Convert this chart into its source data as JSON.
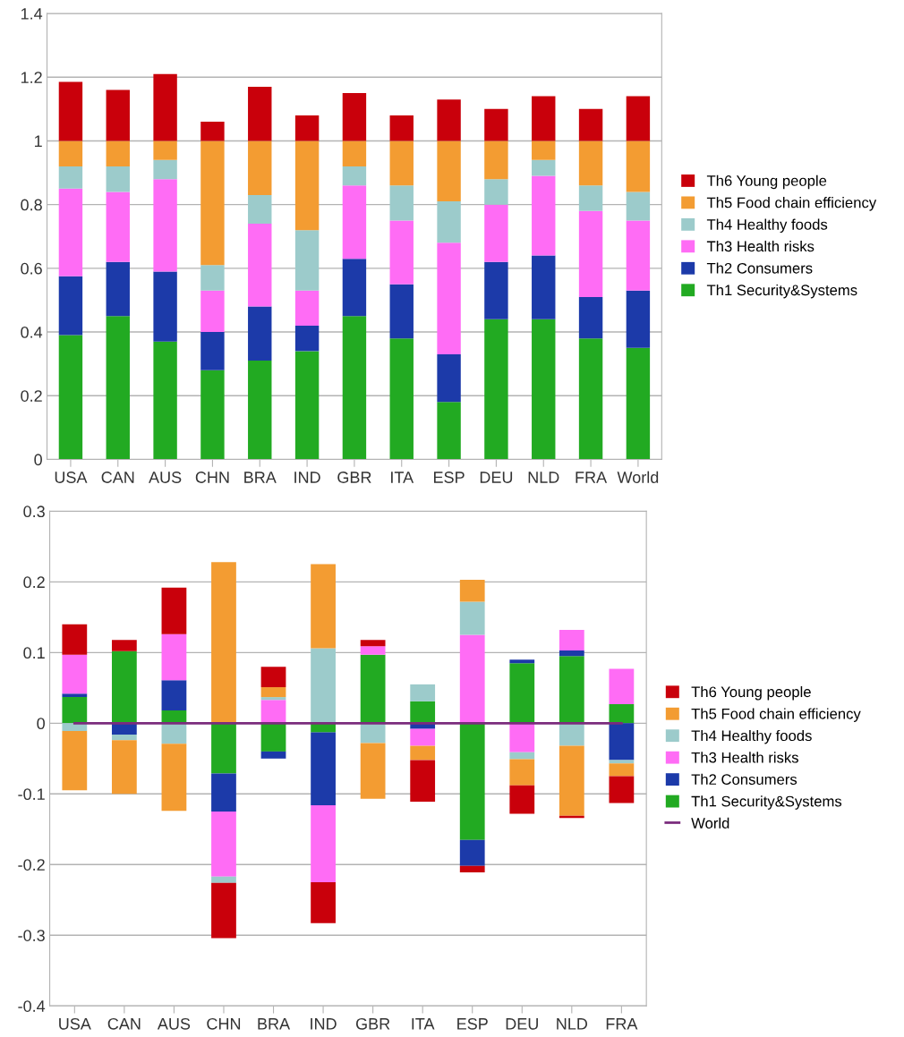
{
  "chart_data": [
    {
      "type": "bar",
      "stacked": true,
      "categories": [
        "USA",
        "CAN",
        "AUS",
        "CHN",
        "BRA",
        "IND",
        "GBR",
        "ITA",
        "ESP",
        "DEU",
        "NLD",
        "FRA",
        "World"
      ],
      "ylim": [
        0,
        1.4
      ],
      "yticks": [
        0,
        0.2,
        0.4,
        0.6,
        0.8,
        1,
        1.2,
        1.4
      ],
      "grid": "y",
      "legend": "right",
      "series": [
        {
          "name": "Th1 Security&Systems",
          "color": "#22aa22",
          "values": [
            0.39,
            0.45,
            0.37,
            0.28,
            0.31,
            0.34,
            0.45,
            0.38,
            0.18,
            0.44,
            0.44,
            0.38,
            0.35
          ]
        },
        {
          "name": "Th2 Consumers",
          "color": "#1c3aa9",
          "values": [
            0.185,
            0.17,
            0.22,
            0.12,
            0.17,
            0.08,
            0.18,
            0.17,
            0.15,
            0.18,
            0.2,
            0.13,
            0.18
          ]
        },
        {
          "name": "Th3 Health risks",
          "color": "#ff6cf5",
          "values": [
            0.275,
            0.22,
            0.29,
            0.13,
            0.26,
            0.11,
            0.23,
            0.2,
            0.35,
            0.18,
            0.25,
            0.27,
            0.22
          ]
        },
        {
          "name": "Th4 Healthy foods",
          "color": "#9ccbcb",
          "values": [
            0.07,
            0.08,
            0.06,
            0.08,
            0.09,
            0.19,
            0.06,
            0.11,
            0.13,
            0.08,
            0.05,
            0.08,
            0.09
          ]
        },
        {
          "name": "Th5 Food chain efficiency",
          "color": "#f39c32",
          "values": [
            0.08,
            0.08,
            0.06,
            0.39,
            0.17,
            0.28,
            0.08,
            0.14,
            0.19,
            0.12,
            0.06,
            0.14,
            0.16
          ]
        },
        {
          "name": "Th6 Young people",
          "color": "#c9000b",
          "values": [
            0.185,
            0.16,
            0.21,
            0.06,
            0.17,
            0.08,
            0.15,
            0.08,
            0.13,
            0.1,
            0.14,
            0.1,
            0.14
          ]
        }
      ]
    },
    {
      "type": "bar",
      "stacked": true,
      "categories": [
        "USA",
        "CAN",
        "AUS",
        "CHN",
        "BRA",
        "IND",
        "GBR",
        "ITA",
        "ESP",
        "DEU",
        "NLD",
        "FRA"
      ],
      "ylim": [
        -0.4,
        0.3
      ],
      "yticks": [
        -0.4,
        -0.3,
        -0.2,
        -0.1,
        0,
        0.1,
        0.2,
        0.3
      ],
      "grid": "y",
      "legend": "right",
      "series": [
        {
          "name": "Th1 Security&Systems",
          "color": "#22aa22",
          "values": [
            0.037,
            0.102,
            0.018,
            -0.071,
            -0.04,
            -0.013,
            0.097,
            0.031,
            -0.165,
            0.085,
            0.095,
            0.027
          ]
        },
        {
          "name": "Th2 Consumers",
          "color": "#1c3aa9",
          "values": [
            0.005,
            -0.016,
            0.043,
            -0.054,
            -0.01,
            -0.103,
            0,
            -0.008,
            -0.037,
            0.005,
            0.008,
            -0.052
          ]
        },
        {
          "name": "Th3 Health risks",
          "color": "#ff6cf5",
          "values": [
            0.055,
            0,
            0.065,
            -0.092,
            0.033,
            -0.109,
            0.012,
            -0.024,
            0.125,
            -0.041,
            0.029,
            0.05
          ]
        },
        {
          "name": "Th4 Healthy foods",
          "color": "#9ccbcb",
          "values": [
            -0.011,
            -0.008,
            -0.029,
            -0.009,
            0.004,
            0.106,
            -0.028,
            0.024,
            0.047,
            -0.01,
            -0.032,
            -0.005
          ]
        },
        {
          "name": "Th5 Food chain efficiency",
          "color": "#f39c32",
          "values": [
            -0.084,
            -0.076,
            -0.095,
            0.228,
            0.014,
            0.119,
            -0.079,
            -0.02,
            0.031,
            -0.037,
            -0.099,
            -0.018
          ]
        },
        {
          "name": "Th6 Young people",
          "color": "#c9000b",
          "values": [
            0.043,
            0.016,
            0.066,
            -0.078,
            0.029,
            -0.058,
            0.009,
            -0.059,
            -0.009,
            -0.04,
            -0.003,
            -0.038
          ]
        },
        {
          "name": "World",
          "type": "line",
          "color": "#7b2c7d",
          "values": [
            0,
            0,
            0,
            0,
            0,
            0,
            0,
            0,
            0,
            0,
            0,
            0
          ]
        }
      ]
    }
  ]
}
